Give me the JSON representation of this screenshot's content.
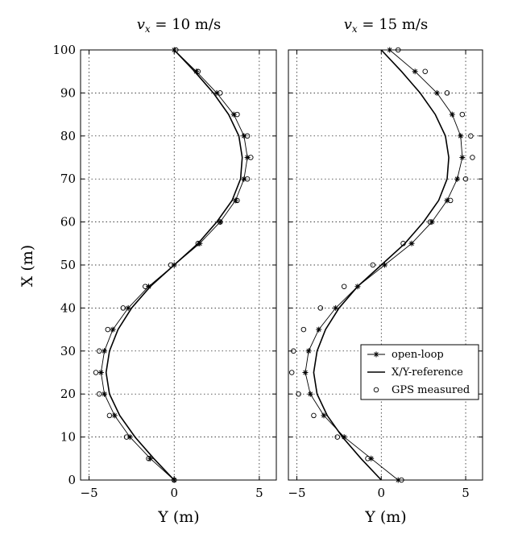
{
  "chart_data": [
    {
      "type": "line",
      "title": "v_x = 10 m/s",
      "title_parts": {
        "var": "v",
        "sub": "x",
        "rest": " = 10 m/s"
      },
      "xlabel": "Y (m)",
      "ylabel": "X (m)",
      "xlim": [
        -5.5,
        6
      ],
      "ylim": [
        0,
        100
      ],
      "xticks": [
        -5,
        0,
        5
      ],
      "yticks": [
        0,
        10,
        20,
        30,
        40,
        50,
        60,
        70,
        80,
        90,
        100
      ],
      "grid": true,
      "series": [
        {
          "name": "X/Y-reference",
          "style": "solid",
          "points": [
            [
              0,
              0
            ],
            [
              -1.2,
              5
            ],
            [
              -2.3,
              10
            ],
            [
              -3.2,
              15
            ],
            [
              -3.8,
              20
            ],
            [
              -4.0,
              25
            ],
            [
              -3.8,
              30
            ],
            [
              -3.3,
              35
            ],
            [
              -2.5,
              40
            ],
            [
              -1.4,
              45
            ],
            [
              0,
              50
            ],
            [
              1.4,
              55
            ],
            [
              2.5,
              60
            ],
            [
              3.4,
              65
            ],
            [
              3.9,
              70
            ],
            [
              4.0,
              75
            ],
            [
              3.8,
              80
            ],
            [
              3.2,
              85
            ],
            [
              2.3,
              90
            ],
            [
              1.2,
              95
            ],
            [
              0,
              100
            ]
          ]
        },
        {
          "name": "open-loop",
          "style": "star",
          "points": [
            [
              0,
              0
            ],
            [
              -1.4,
              5
            ],
            [
              -2.6,
              10
            ],
            [
              -3.5,
              15
            ],
            [
              -4.1,
              20
            ],
            [
              -4.3,
              25
            ],
            [
              -4.1,
              30
            ],
            [
              -3.6,
              35
            ],
            [
              -2.7,
              40
            ],
            [
              -1.5,
              45
            ],
            [
              0,
              50
            ],
            [
              1.5,
              55
            ],
            [
              2.7,
              60
            ],
            [
              3.6,
              65
            ],
            [
              4.1,
              70
            ],
            [
              4.3,
              75
            ],
            [
              4.1,
              80
            ],
            [
              3.5,
              85
            ],
            [
              2.5,
              90
            ],
            [
              1.3,
              95
            ],
            [
              0,
              100
            ]
          ]
        },
        {
          "name": "GPS measured",
          "style": "circle",
          "points": [
            [
              0,
              0
            ],
            [
              -1.5,
              5
            ],
            [
              -2.8,
              10
            ],
            [
              -3.8,
              15
            ],
            [
              -4.4,
              20
            ],
            [
              -4.6,
              25
            ],
            [
              -4.4,
              30
            ],
            [
              -3.9,
              35
            ],
            [
              -3.0,
              40
            ],
            [
              -1.7,
              45
            ],
            [
              -0.2,
              50
            ],
            [
              1.4,
              55
            ],
            [
              2.7,
              60
            ],
            [
              3.7,
              65
            ],
            [
              4.3,
              70
            ],
            [
              4.5,
              75
            ],
            [
              4.3,
              80
            ],
            [
              3.7,
              85
            ],
            [
              2.7,
              90
            ],
            [
              1.4,
              95
            ],
            [
              0.1,
              100
            ]
          ]
        }
      ]
    },
    {
      "type": "line",
      "title": "v_x = 15 m/s",
      "title_parts": {
        "var": "v",
        "sub": "x",
        "rest": " = 15 m/s"
      },
      "xlabel": "Y (m)",
      "xlim": [
        -5.5,
        6
      ],
      "ylim": [
        0,
        100
      ],
      "xticks": [
        -5,
        0,
        5
      ],
      "yticks": [
        0,
        10,
        20,
        30,
        40,
        50,
        60,
        70,
        80,
        90,
        100
      ],
      "grid": true,
      "legend": {
        "position": "lower-right",
        "entries": [
          "open-loop",
          "X/Y-reference",
          "GPS measured"
        ]
      },
      "series": [
        {
          "name": "X/Y-reference",
          "style": "solid",
          "points": [
            [
              0,
              0
            ],
            [
              -1.2,
              5
            ],
            [
              -2.3,
              10
            ],
            [
              -3.2,
              15
            ],
            [
              -3.8,
              20
            ],
            [
              -4.0,
              25
            ],
            [
              -3.8,
              30
            ],
            [
              -3.3,
              35
            ],
            [
              -2.5,
              40
            ],
            [
              -1.4,
              45
            ],
            [
              0,
              50
            ],
            [
              1.4,
              55
            ],
            [
              2.5,
              60
            ],
            [
              3.4,
              65
            ],
            [
              3.9,
              70
            ],
            [
              4.0,
              75
            ],
            [
              3.8,
              80
            ],
            [
              3.2,
              85
            ],
            [
              2.3,
              90
            ],
            [
              1.2,
              95
            ],
            [
              0,
              100
            ]
          ]
        },
        {
          "name": "open-loop",
          "style": "star",
          "points": [
            [
              1.0,
              0
            ],
            [
              -0.6,
              5
            ],
            [
              -2.2,
              10
            ],
            [
              -3.4,
              15
            ],
            [
              -4.2,
              20
            ],
            [
              -4.5,
              25
            ],
            [
              -4.3,
              30
            ],
            [
              -3.7,
              35
            ],
            [
              -2.7,
              40
            ],
            [
              -1.4,
              45
            ],
            [
              0.2,
              50
            ],
            [
              1.8,
              55
            ],
            [
              3.0,
              60
            ],
            [
              3.9,
              65
            ],
            [
              4.5,
              70
            ],
            [
              4.8,
              75
            ],
            [
              4.7,
              80
            ],
            [
              4.2,
              85
            ],
            [
              3.3,
              90
            ],
            [
              2.0,
              95
            ],
            [
              0.5,
              100
            ]
          ]
        },
        {
          "name": "GPS measured",
          "style": "circle",
          "points": [
            [
              1.2,
              0
            ],
            [
              -0.8,
              5
            ],
            [
              -2.6,
              10
            ],
            [
              -4.0,
              15
            ],
            [
              -4.9,
              20
            ],
            [
              -5.3,
              25
            ],
            [
              -5.2,
              30
            ],
            [
              -4.6,
              35
            ],
            [
              -3.6,
              40
            ],
            [
              -2.2,
              45
            ],
            [
              -0.5,
              50
            ],
            [
              1.3,
              55
            ],
            [
              2.9,
              60
            ],
            [
              4.1,
              65
            ],
            [
              5.0,
              70
            ],
            [
              5.4,
              75
            ],
            [
              5.3,
              80
            ],
            [
              4.8,
              85
            ],
            [
              3.9,
              90
            ],
            [
              2.6,
              95
            ],
            [
              1.0,
              100
            ]
          ]
        }
      ]
    }
  ]
}
